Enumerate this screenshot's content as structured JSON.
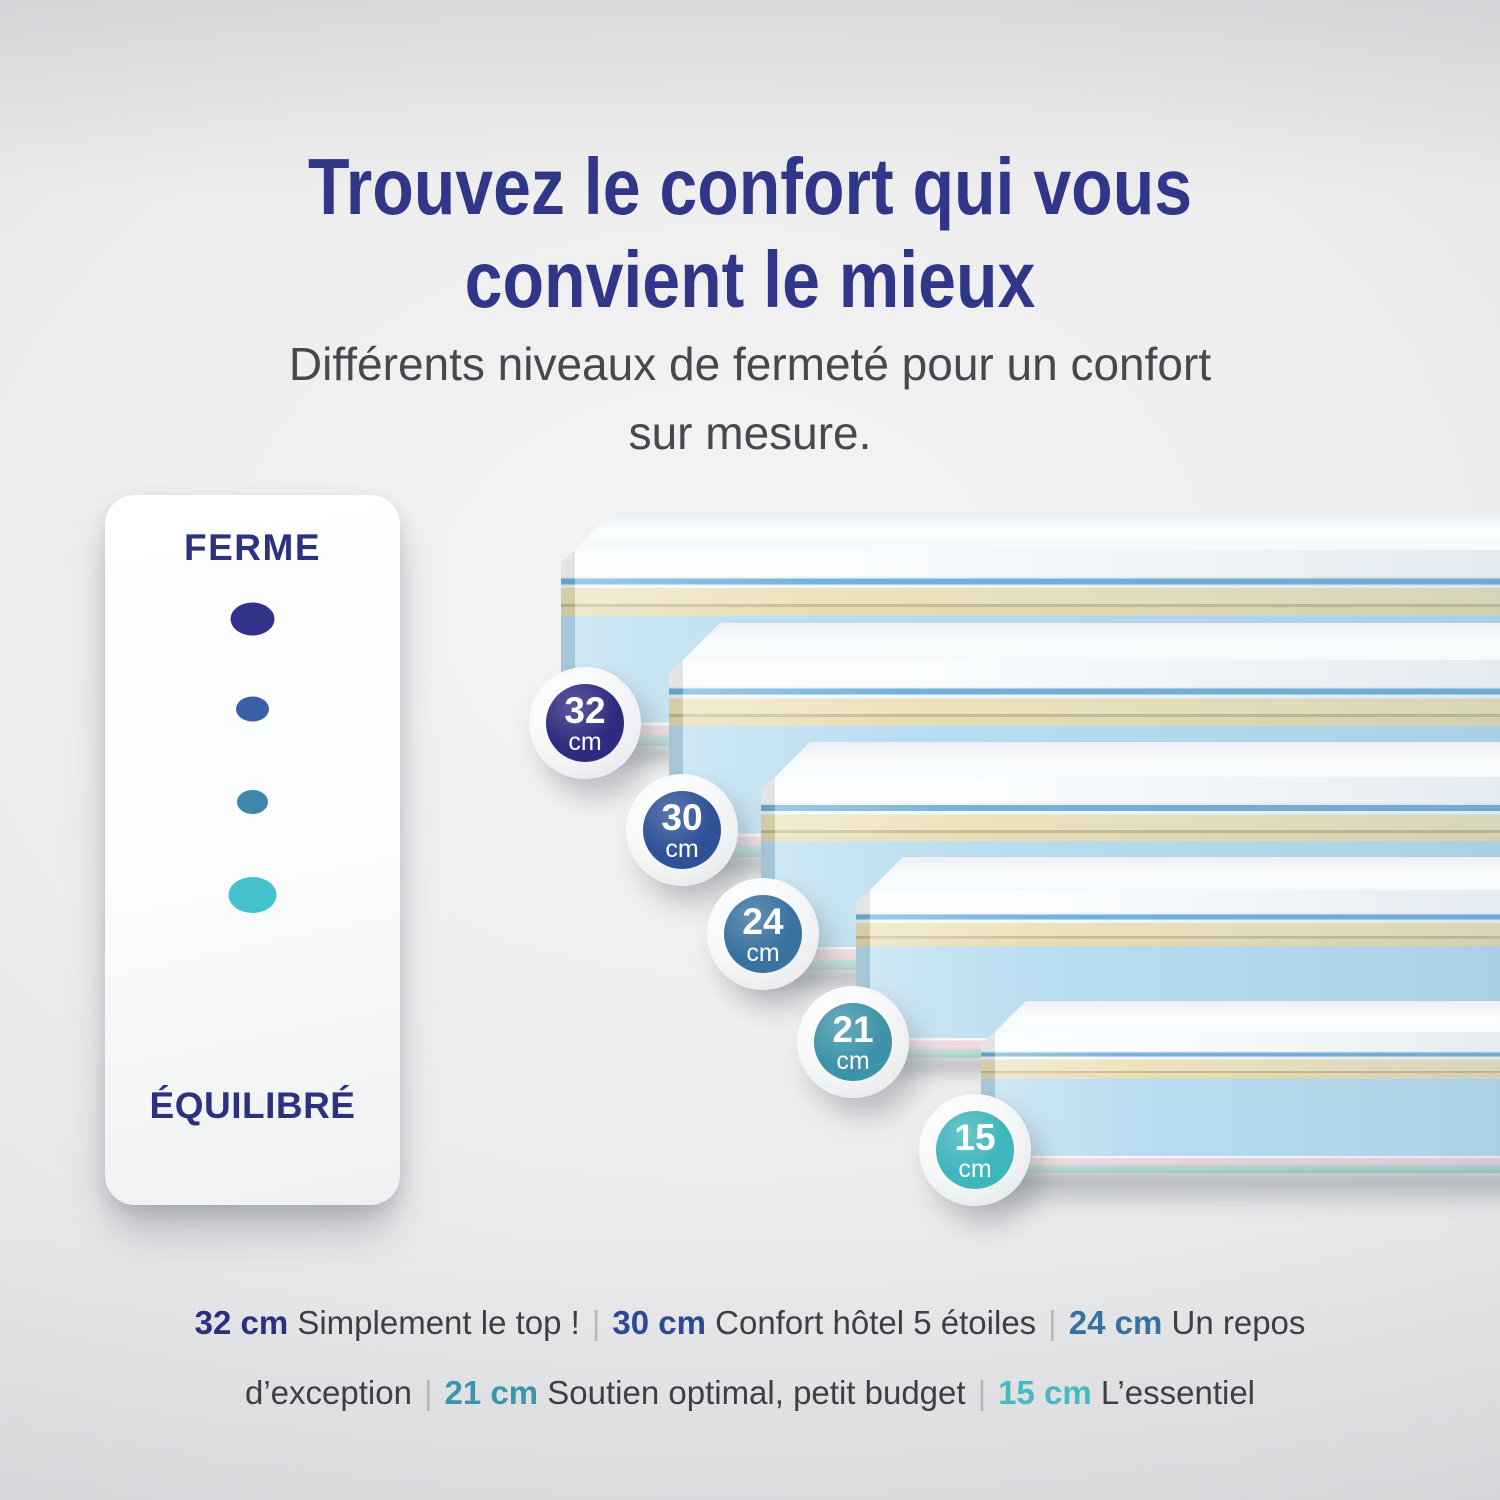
{
  "title": {
    "line1": "Trouvez le confort qui vous",
    "line2": "convient le mieux",
    "color": "#303789"
  },
  "subtitle": {
    "line1": "Différents niveaux de fermeté pour un confort",
    "line2": "sur mesure."
  },
  "firmness_card": {
    "top_label": "FERME",
    "bottom_label": "ÉQUILIBRÉ",
    "label_color": "#2c3180",
    "scale_colors": [
      "#333289",
      "#3b5fa7",
      "#3e87ab",
      "#44c3ce"
    ]
  },
  "mattresses": [
    {
      "height_value": "32",
      "unit": "cm",
      "badge_color": "#2e2c80",
      "caption_color": "#2c2f7e",
      "description": "Simplement le top !"
    },
    {
      "height_value": "30",
      "unit": "cm",
      "badge_color": "#2f5197",
      "caption_color": "#2d4a96",
      "description": "Confort hôtel 5 étoiles"
    },
    {
      "height_value": "24",
      "unit": "cm",
      "badge_color": "#39729f",
      "caption_color": "#38719f",
      "description": "Un repos d’exception"
    },
    {
      "height_value": "21",
      "unit": "cm",
      "badge_color": "#3e93a9",
      "caption_color": "#3a96ae",
      "description": "Soutien optimal, petit budget"
    },
    {
      "height_value": "15",
      "unit": "cm",
      "badge_color": "#3fb5bc",
      "caption_color": "#47b9c2",
      "description": "L’essentiel"
    }
  ],
  "caption_separator": "|",
  "palette": {
    "mattress_top": "#fbfdfe",
    "mattress_blue_line": "#74b2d9",
    "mattress_cream": "#ece3bd",
    "mattress_body": "#b9ddf0",
    "mattress_pink": "#eed4dd",
    "mattress_teal": "#b9dfd6",
    "caption_text": "#3d3f45",
    "subtitle_text": "#47484d"
  }
}
